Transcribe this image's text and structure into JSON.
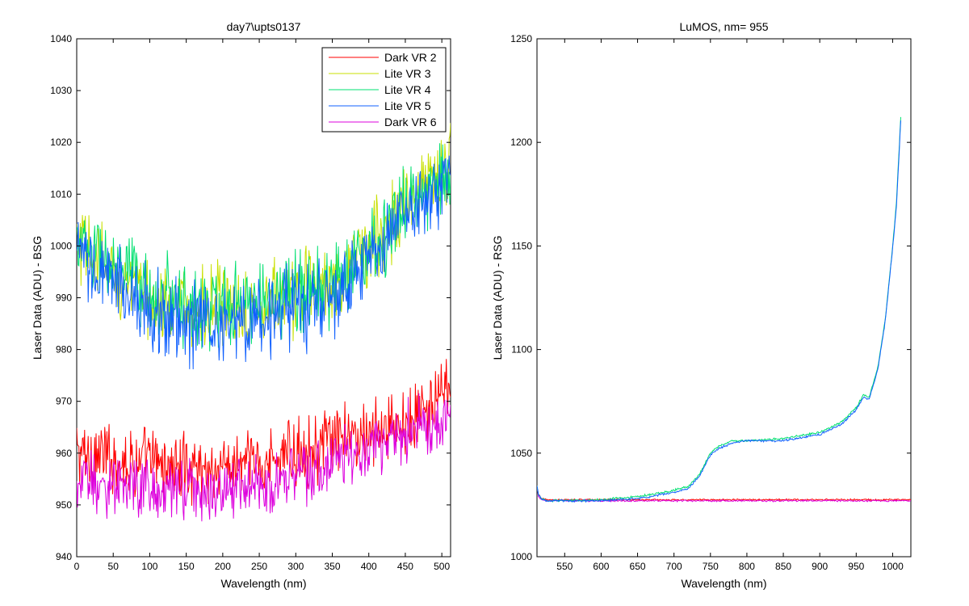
{
  "chart_data": [
    {
      "type": "line",
      "title": "day7\\upts0137",
      "xlabel": "Wavelength (nm)",
      "ylabel": "Laser Data (ADU) - BSG",
      "xlim": [
        0,
        512
      ],
      "ylim": [
        940,
        1040
      ],
      "xticks": [
        0,
        50,
        100,
        150,
        200,
        250,
        300,
        350,
        400,
        450,
        500
      ],
      "yticks": [
        940,
        950,
        960,
        970,
        980,
        990,
        1000,
        1010,
        1020,
        1030,
        1040
      ],
      "legend_position": "top-right",
      "series": [
        {
          "name": "Dark VR 2",
          "color": "#ff0000",
          "noise": 5,
          "x": [
            0,
            50,
            100,
            150,
            200,
            250,
            300,
            350,
            400,
            450,
            500,
            512
          ],
          "y": [
            960,
            959,
            958,
            957,
            957,
            958,
            960,
            962,
            964,
            966,
            970,
            973
          ]
        },
        {
          "name": "Lite VR 3",
          "color": "#c8e000",
          "noise": 6,
          "x": [
            0,
            50,
            100,
            150,
            200,
            250,
            300,
            350,
            400,
            450,
            500,
            512
          ],
          "y": [
            1000,
            995,
            990,
            988,
            988,
            989,
            991,
            994,
            1000,
            1008,
            1014,
            1016
          ]
        },
        {
          "name": "Lite VR 4",
          "color": "#00e070",
          "noise": 6,
          "x": [
            0,
            50,
            100,
            150,
            200,
            250,
            300,
            350,
            400,
            450,
            500,
            512
          ],
          "y": [
            1001,
            996,
            991,
            989,
            988,
            989,
            991,
            993,
            999,
            1007,
            1013,
            1015
          ]
        },
        {
          "name": "Lite VR 5",
          "color": "#1060ff",
          "noise": 6,
          "x": [
            0,
            50,
            100,
            150,
            200,
            250,
            300,
            350,
            400,
            450,
            500,
            512
          ],
          "y": [
            998,
            993,
            988,
            985,
            985,
            986,
            988,
            990,
            997,
            1006,
            1012,
            1014
          ]
        },
        {
          "name": "Dark VR 6",
          "color": "#dd00dd",
          "noise": 4.5,
          "x": [
            0,
            50,
            100,
            150,
            200,
            250,
            300,
            350,
            400,
            450,
            500,
            512
          ],
          "y": [
            955,
            954,
            953,
            953,
            953,
            954,
            956,
            958,
            961,
            964,
            967,
            969
          ]
        }
      ]
    },
    {
      "type": "line",
      "title": "LuMOS, nm= 955",
      "xlabel": "Wavelength (nm)",
      "ylabel": "Laser Data (ADU) - RSG",
      "xlim": [
        512,
        1025
      ],
      "ylim": [
        1000,
        1250
      ],
      "xticks": [
        550,
        600,
        650,
        700,
        750,
        800,
        850,
        900,
        950,
        1000
      ],
      "yticks": [
        1000,
        1050,
        1100,
        1150,
        1200,
        1250
      ],
      "series": [
        {
          "color": "#ff0000",
          "noise": 0.3,
          "x": [
            512,
            514,
            518,
            525,
            600,
            700,
            800,
            900,
            1000,
            1025
          ],
          "y": [
            1034,
            1030,
            1028,
            1027.5,
            1027.5,
            1027.5,
            1027.5,
            1027.5,
            1027.5,
            1027.5
          ]
        },
        {
          "color": "#dd00dd",
          "noise": 0.3,
          "x": [
            512,
            514,
            518,
            525,
            600,
            700,
            800,
            900,
            1000,
            1025
          ],
          "y": [
            1033,
            1029,
            1027.5,
            1027,
            1027,
            1027,
            1027,
            1027,
            1027,
            1027
          ]
        },
        {
          "color": "#00e070",
          "noise": 0.4,
          "x": [
            512,
            514,
            518,
            525,
            600,
            650,
            700,
            720,
            735,
            750,
            760,
            780,
            800,
            850,
            900,
            930,
            950,
            960,
            968,
            980,
            990,
            1000,
            1005,
            1012
          ],
          "y": [
            1034,
            1030,
            1028,
            1027,
            1027.5,
            1029,
            1032,
            1034,
            1040,
            1050,
            1053,
            1056,
            1056,
            1057,
            1060,
            1065,
            1072,
            1078,
            1077,
            1092,
            1115,
            1150,
            1170,
            1218
          ]
        },
        {
          "color": "#1060ff",
          "noise": 0.4,
          "x": [
            512,
            514,
            518,
            525,
            600,
            650,
            700,
            720,
            735,
            750,
            760,
            780,
            800,
            850,
            900,
            930,
            950,
            960,
            968,
            980,
            990,
            1000,
            1005,
            1012
          ],
          "y": [
            1034,
            1030,
            1028,
            1027,
            1027,
            1028,
            1031,
            1033,
            1039,
            1049,
            1052,
            1055,
            1056,
            1056,
            1059,
            1064,
            1071,
            1077,
            1076,
            1091,
            1114,
            1149,
            1168,
            1216
          ]
        }
      ]
    }
  ]
}
